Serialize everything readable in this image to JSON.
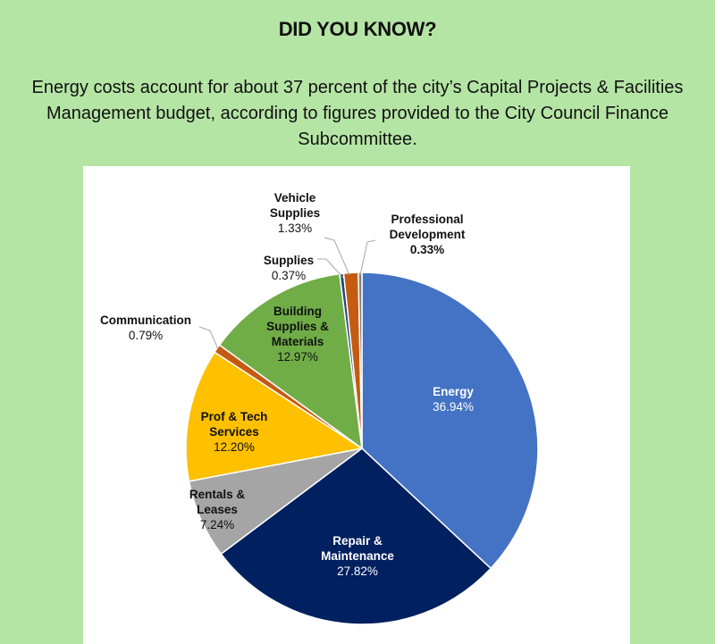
{
  "header": {
    "title": "DID YOU KNOW?",
    "intro": "Energy costs account for about 37 percent of the city’s Capital Projects & Facilities Management budget, according to figures provided to the City Council Finance Subcommittee."
  },
  "chart_data": {
    "type": "pie",
    "start": "12 o'clock, clockwise",
    "slices": [
      {
        "label": "Energy",
        "value": 36.94,
        "pct": "36.94%",
        "color": "#4472c4"
      },
      {
        "label": "Repair & Maintenance",
        "value": 27.82,
        "pct": "27.82%",
        "color": "#002060"
      },
      {
        "label": "Rentals & Leases",
        "value": 7.24,
        "pct": "7.24%",
        "color": "#a5a5a5"
      },
      {
        "label": "Prof & Tech Services",
        "value": 12.2,
        "pct": "12.20%",
        "color": "#ffc000"
      },
      {
        "label": "Communication",
        "value": 0.79,
        "pct": "0.79%",
        "color": "#c55a11"
      },
      {
        "label": "Building Supplies & Materials",
        "value": 12.97,
        "pct": "12.97%",
        "color": "#70ad47"
      },
      {
        "label": "Supplies",
        "value": 0.37,
        "pct": "0.37%",
        "color": "#264478"
      },
      {
        "label": "Vehicle Supplies",
        "value": 1.33,
        "pct": "1.33%",
        "color": "#c55a11"
      },
      {
        "label": "Professional Development",
        "value": 0.33,
        "pct": "0.33%",
        "color": "#7f7f7f"
      }
    ]
  }
}
